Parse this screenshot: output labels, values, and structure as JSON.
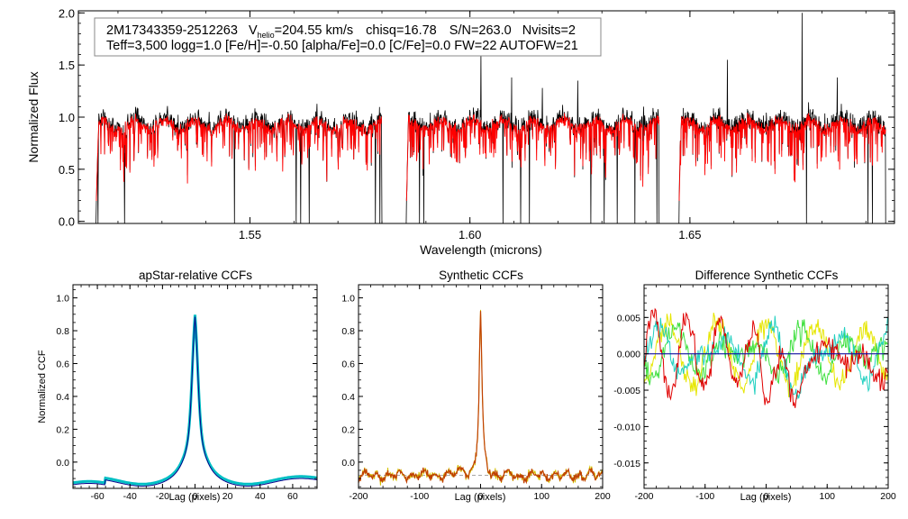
{
  "info_box": {
    "object_id": "2M17343359-2512263",
    "v_prefix": "V",
    "v_sub": "helio",
    "v_value": "=204.55 km/s",
    "chisq": "chisq=16.78",
    "snr": "S/N=263.0",
    "nvisits": "Nvisits=2",
    "line2": "Teff=3,500 logg=1.0 [Fe/H]=-0.50 [alpha/Fe]=0.0 [C/Fe]=0.0 FW=22 AUTOFW=21"
  },
  "colors": {
    "observed": "#000000",
    "model": "#ff0000",
    "ccf_main": "#00bfc4",
    "ccf_line": "#00008b",
    "syn_main": "#c04000",
    "syn_alt": "#d4c000",
    "diff_red": "#e00000",
    "diff_yellow": "#e6e600",
    "diff_green": "#40e040",
    "diff_cyan": "#20d0c0",
    "zero_line": "#1010a0"
  },
  "chart_data": [
    {
      "id": "spectrum",
      "type": "line",
      "title": "",
      "xlabel": "Wavelength (microns)",
      "ylabel": "Normalized Flux",
      "xlim": [
        1.511,
        1.6965
      ],
      "ylim": [
        -0.02,
        2.02
      ],
      "xticks": [
        1.55,
        1.6,
        1.65
      ],
      "xtick_labels": [
        "1.55",
        "1.60",
        "1.65"
      ],
      "yticks": [
        0.0,
        0.5,
        1.0,
        1.5,
        2.0
      ],
      "ytick_labels": [
        "0.0",
        "0.5",
        "1.0",
        "1.5",
        "2.0"
      ],
      "chips": [
        [
          1.515,
          1.58
        ],
        [
          1.5855,
          1.643
        ],
        [
          1.6475,
          1.6945
        ]
      ],
      "continuum": 0.92,
      "series": [
        {
          "name": "observed spectrum",
          "color": "#000000"
        },
        {
          "name": "best-fit model",
          "color": "#ff0000"
        }
      ],
      "deep_absorptions": [
        1.5155,
        1.5215,
        1.5465,
        1.5605,
        1.5615,
        1.5635,
        1.5785,
        1.5795,
        1.5885,
        1.5895,
        1.6075,
        1.6115,
        1.6135,
        1.6275,
        1.6305,
        1.6335,
        1.6375,
        1.6425,
        1.6755,
        1.6765,
        1.6905,
        1.6915
      ],
      "emission_spikes": [
        [
          1.6025,
          1.62
        ],
        [
          1.6095,
          1.38
        ],
        [
          1.6165,
          1.28
        ],
        [
          1.6245,
          1.35
        ],
        [
          1.6395,
          1.1
        ],
        [
          1.6585,
          1.55
        ],
        [
          1.6755,
          2.0
        ],
        [
          1.6835,
          1.38
        ],
        [
          1.6945,
          2.0
        ]
      ]
    },
    {
      "id": "apstar-ccf",
      "type": "line",
      "title": "apStar-relative CCFs",
      "xlabel": "Lag (pixels)",
      "ylabel": "Normalized CCF",
      "xlim": [
        -75,
        75
      ],
      "ylim": [
        -0.16,
        1.08
      ],
      "xticks": [
        -60,
        -40,
        -20,
        0,
        20,
        40,
        60
      ],
      "xtick_labels": [
        "-60",
        "-40",
        "-20",
        "0",
        "20",
        "40",
        "60"
      ],
      "yticks": [
        0.0,
        0.2,
        0.4,
        0.6,
        0.8,
        1.0
      ],
      "ytick_labels": [
        "0.0",
        "0.2",
        "0.4",
        "0.6",
        "0.8",
        "1.0"
      ],
      "series": [
        {
          "name": "visit CCF",
          "color": "#00bfc4"
        },
        {
          "name": "combined CCF",
          "color": "#00008b"
        }
      ]
    },
    {
      "id": "synthetic-ccf",
      "type": "line",
      "title": "Synthetic CCFs",
      "xlabel": "Lag (pixels)",
      "ylabel": "",
      "xlim": [
        -200,
        200
      ],
      "ylim": [
        -0.16,
        1.08
      ],
      "xticks": [
        -200,
        -100,
        0,
        100,
        200
      ],
      "xtick_labels": [
        "-200",
        "-100",
        "0",
        "100",
        "200"
      ],
      "yticks": [
        0.0,
        0.2,
        0.4,
        0.6,
        0.8,
        1.0
      ],
      "ytick_labels": [
        "0.0",
        "0.2",
        "0.4",
        "0.6",
        "0.8",
        "1.0"
      ],
      "series": [
        {
          "name": "visit 1",
          "color": "#d4c000"
        },
        {
          "name": "visit 2",
          "color": "#c04000"
        }
      ]
    },
    {
      "id": "difference-ccf",
      "type": "line",
      "title": "Difference Synthetic CCFs",
      "xlabel": "Lag (pixels)",
      "ylabel": "",
      "xlim": [
        -200,
        200
      ],
      "ylim": [
        -0.0185,
        0.0095
      ],
      "xticks": [
        -200,
        -100,
        0,
        100,
        200
      ],
      "xtick_labels": [
        "-200",
        "-100",
        "0",
        "100",
        "200"
      ],
      "yticks": [
        0.005,
        0.0,
        -0.005,
        -0.01,
        -0.015
      ],
      "ytick_labels": [
        "0.005",
        "0.000",
        "-0.005",
        "-0.010",
        "-0.015"
      ],
      "series": [
        {
          "name": "diff red",
          "color": "#e00000"
        },
        {
          "name": "diff yellow",
          "color": "#e6e600"
        },
        {
          "name": "diff green",
          "color": "#40e040"
        },
        {
          "name": "diff cyan",
          "color": "#20d0c0"
        },
        {
          "name": "zero",
          "color": "#1010a0"
        }
      ]
    }
  ]
}
